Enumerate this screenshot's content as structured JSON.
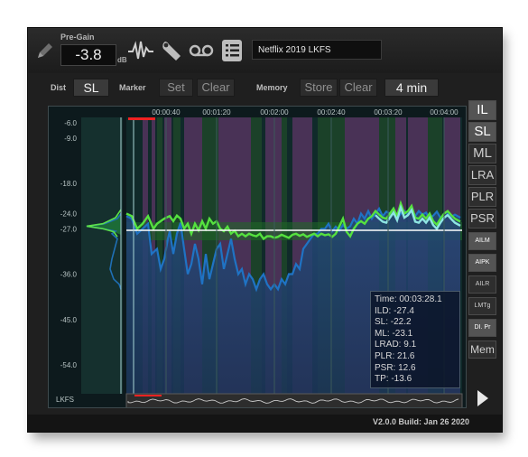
{
  "header": {
    "pregain_label": "Pre-Gain",
    "pregain_value": "-3.8",
    "pregain_unit": "dB",
    "program_title": "Netflix 2019 LKFS",
    "icons": [
      "pencil-icon",
      "waveform-icon",
      "wrench-icon",
      "tape-icon",
      "list-icon"
    ]
  },
  "toolbar": {
    "dist_label": "Dist",
    "dist_value": "SL",
    "marker_label": "Marker",
    "marker_set": "Set",
    "marker_clear": "Clear",
    "memory_label": "Memory",
    "memory_store": "Store",
    "memory_clear": "Clear",
    "window_value": "4 min"
  },
  "plot": {
    "y_ticks": [
      "-6.0",
      "-9.0",
      "-18.0",
      "-24.0",
      "-27.0",
      "-36.0",
      "-45.0",
      "-54.0"
    ],
    "x_ticks": [
      "00:00:40",
      "00:01:20",
      "00:02:00",
      "00:02:40",
      "00:03:20",
      "00:04:00"
    ],
    "lkfs_label": "LKFS",
    "target": -27.0
  },
  "readout": {
    "time": "Time: 00:03:28.1",
    "ild": "ILD: -27.4",
    "sl": "SL: -22.2",
    "ml": "ML: -23.1",
    "lrad": "LRAD: 9.1",
    "plr": "PLR: 21.6",
    "psr": "PSR: 12.6",
    "tp": "TP: -13.6"
  },
  "side_buttons": {
    "il": "IL",
    "sl": "SL",
    "ml": "ML",
    "lra": "LRA",
    "plr": "PLR",
    "psr": "PSR",
    "ailm": "AILM",
    "aipk": "AIPK",
    "ailr": "AILR",
    "lmtg": "LMTg",
    "dipr": "DI. Pr",
    "mem": "Mem"
  },
  "footer": {
    "version": "V2.0.0 Build: Jan 26 2020"
  },
  "colors": {
    "purple_band": "#5c3565",
    "green_band": "#1f4a2a",
    "blue_fill": "#1e3b66",
    "sl_line": "#58e04a",
    "ml_line": "#1f6fb5",
    "target_line": "#ffffff"
  }
}
